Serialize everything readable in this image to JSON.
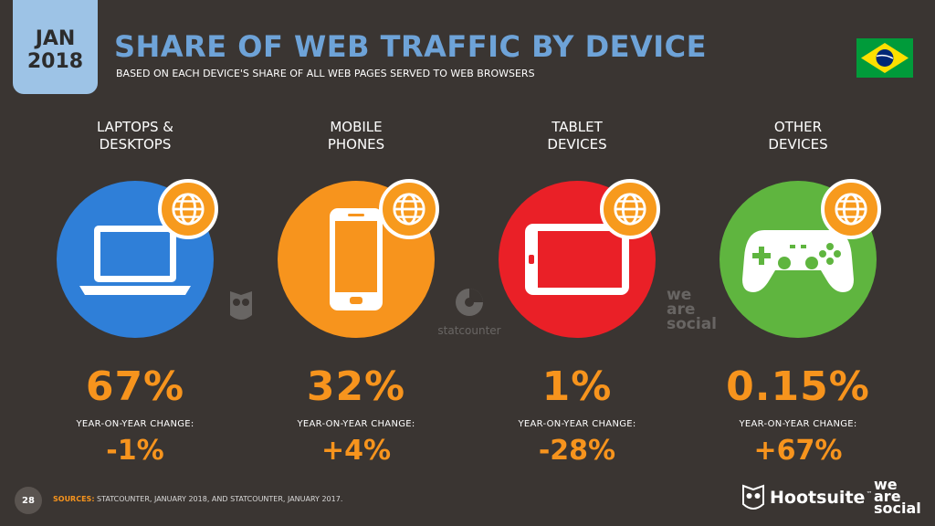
{
  "header": {
    "badge_month": "JAN",
    "badge_year": "2018",
    "title": "SHARE OF WEB TRAFFIC BY DEVICE",
    "subtitle": "BASED ON EACH DEVICE'S SHARE OF ALL WEB PAGES SERVED TO WEB BROWSERS"
  },
  "flag_icon": "brazil-flag-icon",
  "colors": {
    "background": "#3a3532",
    "accent": "#f7941d",
    "title": "#6ea3d8",
    "badge": "#9dc3e6"
  },
  "chart_data": {
    "type": "table",
    "categories": [
      "LAPTOPS & DESKTOPS",
      "MOBILE PHONES",
      "TABLET DEVICES",
      "OTHER DEVICES"
    ],
    "columns": [
      {
        "label_line1": "LAPTOPS &",
        "label_line2": "DESKTOPS",
        "share": "67%",
        "yoy_label": "YEAR-ON-YEAR CHANGE:",
        "yoy": "-1%",
        "color": "#2f7fd8",
        "icon": "laptop-icon"
      },
      {
        "label_line1": "MOBILE",
        "label_line2": "PHONES",
        "share": "32%",
        "yoy_label": "YEAR-ON-YEAR CHANGE:",
        "yoy": "+4%",
        "color": "#f7941d",
        "icon": "phone-icon"
      },
      {
        "label_line1": "TABLET",
        "label_line2": "DEVICES",
        "share": "1%",
        "yoy_label": "YEAR-ON-YEAR CHANGE:",
        "yoy": "-28%",
        "color": "#ea2027",
        "icon": "tablet-icon"
      },
      {
        "label_line1": "OTHER",
        "label_line2": "DEVICES",
        "share": "0.15%",
        "yoy_label": "YEAR-ON-YEAR CHANGE:",
        "yoy": "+67%",
        "color": "#5fb53f",
        "icon": "gamepad-icon"
      }
    ]
  },
  "watermarks": {
    "statcounter": "statcounter",
    "weare_line1": "we",
    "weare_line2": "are",
    "weare_line3": "social"
  },
  "footer": {
    "page_number": "28",
    "sources_label": "SOURCES:",
    "sources_text": " STATCOUNTER, JANUARY 2018, AND STATCOUNTER, JANUARY 2017.",
    "hootsuite": "Hootsuite",
    "hootsuite_tm": "™",
    "weare_line1": "we",
    "weare_line2": "are",
    "weare_line3": "social"
  }
}
